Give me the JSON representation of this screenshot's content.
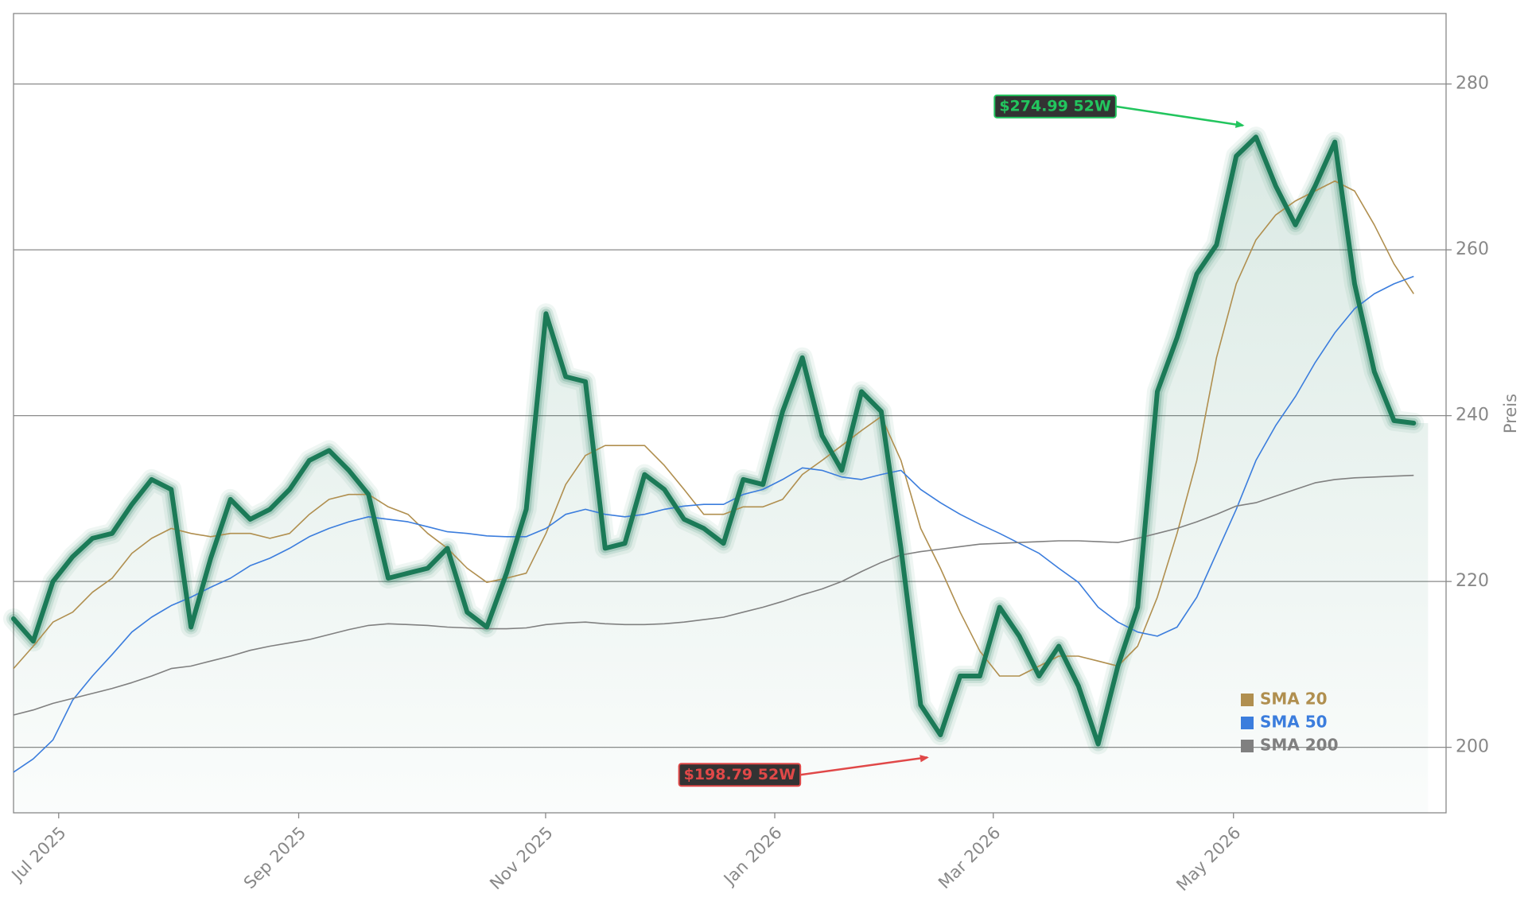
{
  "chart_data": {
    "type": "line",
    "y_label": "Preis",
    "xlim": [
      0,
      72.64
    ],
    "xticks": [
      {
        "value": 2.29,
        "label": "Jul 2025"
      },
      {
        "value": 14.46,
        "label": "Sep 2025"
      },
      {
        "value": 26.98,
        "label": "Nov 2025"
      },
      {
        "value": 38.6,
        "label": "Jan 2026"
      },
      {
        "value": 49.68,
        "label": "Mar 2026"
      },
      {
        "value": 61.86,
        "label": "May 2026"
      }
    ],
    "ylim": [
      192.1,
      288.5
    ],
    "yticks": [
      200,
      220,
      240,
      260,
      280
    ],
    "grid": true,
    "legend": "lower right",
    "series": [
      {
        "color": "#1b7a57",
        "fill": true,
        "values": [
          215.5,
          212.8,
          220.0,
          223.0,
          225.2,
          225.8,
          229.3,
          232.3,
          231.1,
          214.5,
          222.8,
          229.9,
          227.5,
          228.7,
          231.1,
          234.6,
          235.8,
          233.4,
          230.5,
          220.4,
          221.0,
          221.6,
          224.0,
          216.3,
          214.5,
          221.0,
          228.7,
          252.3,
          244.7,
          244.1,
          224.0,
          224.6,
          232.9,
          231.1,
          227.5,
          226.4,
          224.6,
          232.3,
          231.7,
          240.5,
          247.0,
          237.6,
          233.4,
          242.9,
          240.5,
          224.0,
          205.1,
          201.5,
          208.6,
          208.6,
          216.9,
          213.4,
          208.6,
          212.2,
          207.4,
          200.4,
          209.8,
          216.9,
          242.9,
          249.4,
          257.1,
          260.6,
          271.3,
          273.6,
          267.7,
          263.0,
          267.7,
          273.0,
          255.9,
          245.3,
          239.4,
          239.1
        ]
      },
      {
        "name": "SMA 20",
        "color": "#b08f4f",
        "values": [
          209.5,
          212.2,
          215.1,
          216.3,
          218.7,
          220.4,
          223.4,
          225.2,
          226.4,
          225.8,
          225.4,
          225.8,
          225.8,
          225.2,
          225.8,
          228.1,
          229.9,
          230.5,
          230.5,
          229.0,
          228.1,
          225.8,
          224.0,
          221.6,
          219.9,
          220.4,
          221.0,
          225.8,
          231.7,
          235.2,
          236.4,
          236.4,
          236.4,
          234.0,
          231.1,
          228.1,
          228.1,
          229.0,
          229.0,
          229.9,
          232.9,
          234.6,
          236.4,
          238.2,
          239.9,
          234.6,
          226.4,
          221.6,
          216.3,
          211.6,
          208.6,
          208.6,
          209.8,
          211.0,
          211.0,
          210.4,
          209.8,
          212.2,
          218.1,
          225.8,
          234.6,
          247.0,
          255.9,
          261.2,
          264.2,
          265.9,
          267.1,
          268.3,
          267.1,
          263.0,
          258.3,
          254.7
        ]
      },
      {
        "name": "SMA 50",
        "color": "#3b7ddd",
        "values": [
          197.0,
          198.6,
          200.9,
          205.7,
          208.6,
          211.2,
          213.9,
          215.7,
          217.1,
          218.1,
          219.3,
          220.4,
          221.9,
          222.8,
          224.0,
          225.4,
          226.4,
          227.2,
          227.8,
          227.5,
          227.2,
          226.6,
          226.0,
          225.8,
          225.5,
          225.4,
          225.4,
          226.4,
          228.1,
          228.7,
          228.1,
          227.8,
          228.1,
          228.7,
          229.1,
          229.3,
          229.3,
          230.5,
          231.1,
          232.3,
          233.7,
          233.4,
          232.6,
          232.3,
          232.9,
          233.4,
          231.1,
          229.5,
          228.1,
          226.9,
          225.8,
          224.6,
          223.4,
          221.6,
          219.9,
          216.9,
          215.1,
          213.9,
          213.4,
          214.5,
          218.1,
          223.4,
          228.7,
          234.6,
          238.8,
          242.3,
          246.4,
          250.0,
          252.9,
          254.7,
          255.9,
          256.8
        ]
      },
      {
        "name": "SMA 200",
        "color": "#808080",
        "values": [
          203.9,
          204.5,
          205.3,
          205.9,
          206.5,
          207.1,
          207.8,
          208.6,
          209.5,
          209.8,
          210.4,
          211.0,
          211.7,
          212.2,
          212.6,
          213.0,
          213.6,
          214.2,
          214.7,
          214.9,
          214.8,
          214.7,
          214.5,
          214.4,
          214.3,
          214.3,
          214.4,
          214.8,
          215.0,
          215.1,
          214.9,
          214.8,
          214.8,
          214.9,
          215.1,
          215.4,
          215.7,
          216.3,
          216.9,
          217.6,
          218.4,
          219.1,
          220.0,
          221.2,
          222.3,
          223.2,
          223.6,
          223.9,
          224.2,
          224.5,
          224.6,
          224.7,
          224.8,
          224.9,
          224.9,
          224.8,
          224.7,
          225.2,
          225.8,
          226.4,
          227.2,
          228.1,
          229.1,
          229.5,
          230.3,
          231.1,
          231.9,
          232.3,
          232.5,
          232.6,
          232.7,
          232.8
        ]
      }
    ],
    "annotations": [
      {
        "text": "$274.99 52W",
        "x": 62.5,
        "value": 274.99,
        "color": "#22c55e"
      },
      {
        "text": "$198.79 52W",
        "x": 46.5,
        "value": 198.79,
        "color": "#e04848"
      }
    ]
  }
}
